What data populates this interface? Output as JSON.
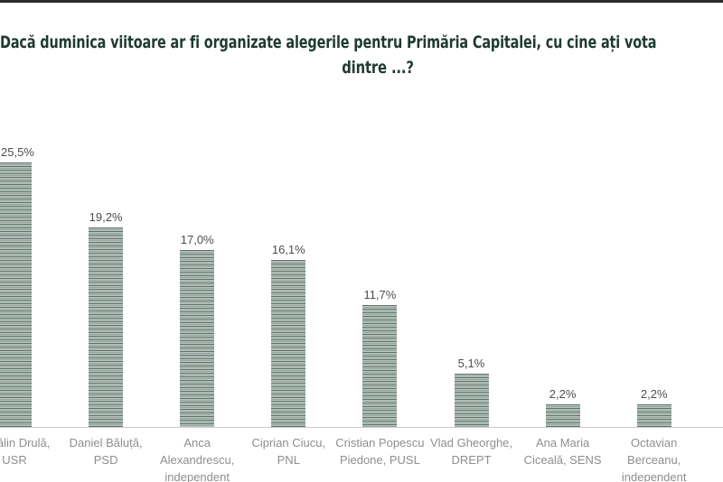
{
  "page": {
    "background_color": "#ffffff",
    "top_strip_color": "#2b2b2b"
  },
  "title": {
    "line1": "Dacă duminica viitoare ar fi organizate alegerile pentru Primăria Capitalei, cu cine ați vota",
    "line2": "dintre ...?",
    "color": "#1f3a31"
  },
  "chart_data": {
    "type": "bar",
    "title": "Dacă duminica viitoare ar fi organizate alegerile pentru Primăria Capitalei, cu cine ați vota dintre ...?",
    "unit": "%",
    "categories": [
      "Cătălin Drulă, USR",
      "Daniel Băluță, PSD",
      "Anca Alexandrescu, independent",
      "Ciprian Ciucu, PNL",
      "Cristian Popescu Piedone, PUSL",
      "Vlad Gheorghe, DREPT",
      "Ana Maria Ciceală, SENS",
      "Octavian Berceanu, independent"
    ],
    "category_lines": [
      [
        "Cătălin Drulă,",
        "USR"
      ],
      [
        "Daniel Băluță,",
        "PSD"
      ],
      [
        "Anca",
        "Alexandrescu,",
        "independent"
      ],
      [
        "Ciprian Ciucu,",
        "PNL"
      ],
      [
        "Cristian Popescu",
        "Piedone, PUSL"
      ],
      [
        "Vlad Gheorghe,",
        "DREPT"
      ],
      [
        "Ana Maria",
        "Ciceală, SENS"
      ],
      [
        "Octavian",
        "Berceanu,",
        "independent"
      ]
    ],
    "values": [
      25.5,
      19.2,
      17.0,
      16.1,
      11.7,
      5.1,
      2.2,
      2.2
    ],
    "value_labels": [
      "25,5%",
      "19,2%",
      "17,0%",
      "16,1%",
      "11,7%",
      "5,1%",
      "2,2%",
      "2,2%"
    ],
    "ylim": [
      0,
      28
    ],
    "grid": false,
    "legend": "none",
    "bar_pattern_colors": {
      "light": "#b9c6c0",
      "mid": "#93a59d",
      "dark": "#5d7067"
    },
    "axis_line_color": "#cccccc",
    "value_label_color": "#4d4d4d",
    "category_label_color": "#8e8e8e"
  }
}
